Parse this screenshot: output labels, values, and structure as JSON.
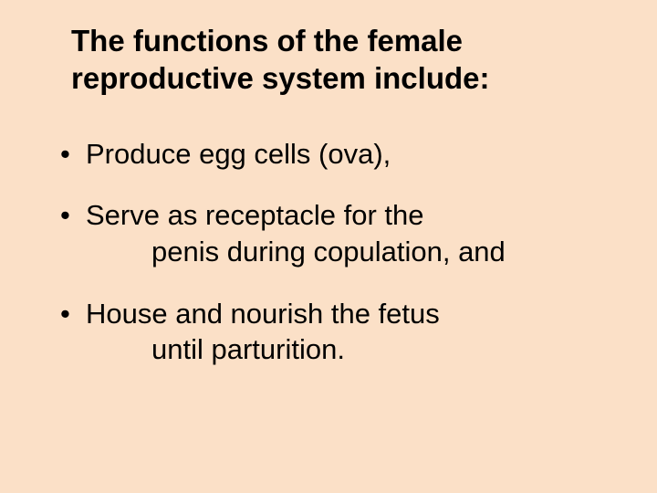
{
  "slide": {
    "background_color": "#fbe0c7",
    "text_color": "#000000",
    "title_fontsize": 33,
    "body_fontsize": 31,
    "font_family": "Verdana, Geneva, sans-serif",
    "title": "The functions of the female reproductive system include:",
    "bullets": [
      {
        "line1": "Produce egg cells (ova),",
        "line2": ""
      },
      {
        "line1": "Serve as receptacle for the",
        "line2": "penis during copulation, and"
      },
      {
        "line1": "House and nourish the fetus",
        "line2": "until parturition."
      }
    ]
  }
}
